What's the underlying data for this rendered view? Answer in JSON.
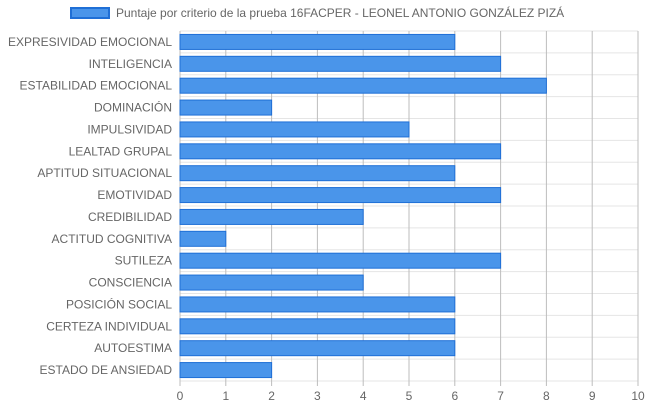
{
  "chart_data": {
    "type": "bar",
    "orientation": "horizontal",
    "categories": [
      "EXPRESIVIDAD EMOCIONAL",
      "INTELIGENCIA",
      "ESTABILIDAD EMOCIONAL",
      "DOMINACIÓN",
      "IMPULSIVIDAD",
      "LEALTAD GRUPAL",
      "APTITUD SITUACIONAL",
      "EMOTIVIDAD",
      "CREDIBILIDAD",
      "ACTITUD COGNITIVA",
      "SUTILEZA",
      "CONSCIENCIA",
      "POSICIÓN SOCIAL",
      "CERTEZA INDIVIDUAL",
      "AUTOESTIMA",
      "ESTADO DE ANSIEDAD"
    ],
    "series": [
      {
        "name": "Puntaje por criterio de la prueba 16FACPER - LEONEL ANTONIO GONZÁLEZ PIZÁ",
        "values": [
          6,
          7,
          8,
          2,
          5,
          7,
          6,
          7,
          4,
          1,
          7,
          4,
          6,
          6,
          6,
          2
        ]
      }
    ],
    "xlim": [
      0,
      10
    ],
    "x_ticks": [
      0,
      1,
      2,
      3,
      4,
      5,
      6,
      7,
      8,
      9,
      10
    ],
    "grid": true,
    "legend_position": "top-left",
    "colors": {
      "bar_fill": "#4a95ea",
      "bar_border": "#1f6fd6",
      "grid": "#e5e5e5",
      "grid_vertical": "#bdbdbd",
      "text": "#666666"
    }
  }
}
